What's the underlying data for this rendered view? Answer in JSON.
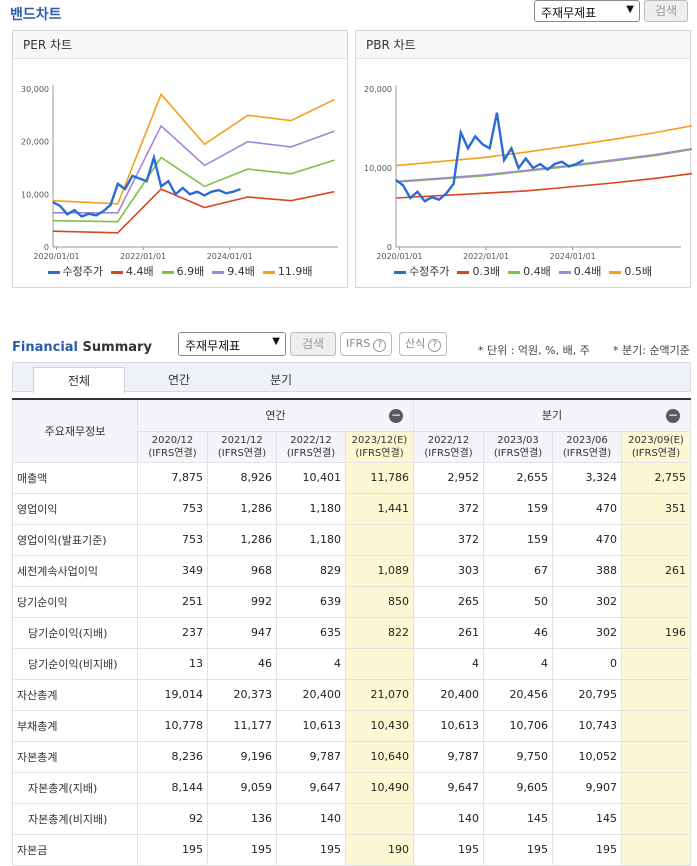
{
  "band": {
    "title": "밴드차트",
    "select_value": "주재무제표",
    "search_label": "검색"
  },
  "per_chart": {
    "title": "PER 차트",
    "chart_data": {
      "type": "line",
      "title": "PER 차트",
      "x_ticks": [
        "2020/01/01",
        "2022/01/01",
        "2024/01/01"
      ],
      "y_ticks": [
        "0",
        "10,000",
        "20,000",
        "30,000"
      ],
      "ylim": [
        0,
        30000
      ],
      "series": [
        {
          "name": "수정주가",
          "color": "#2b6cd4",
          "x": [
            "2019/12",
            "2020/02",
            "2020/04",
            "2020/06",
            "2020/08",
            "2020/10",
            "2020/12",
            "2021/02",
            "2021/04",
            "2021/06",
            "2021/08",
            "2021/10",
            "2021/12",
            "2022/02",
            "2022/04",
            "2022/06",
            "2022/08",
            "2022/10",
            "2022/12",
            "2023/02",
            "2023/04",
            "2023/06",
            "2023/08",
            "2023/10",
            "2023/12",
            "2024/02",
            "2024/04"
          ],
          "values": [
            8500,
            7800,
            6200,
            7000,
            5800,
            6300,
            6000,
            6800,
            8000,
            12000,
            11000,
            13500,
            13000,
            12500,
            17000,
            11500,
            12500,
            10000,
            11200,
            10000,
            10500,
            9800,
            10500,
            10800,
            10200,
            10500,
            11000
          ]
        },
        {
          "name": "4.4배",
          "color": "#d9461e",
          "x": [
            "2019/12",
            "2021/06",
            "2022/06",
            "2023/06",
            "2024/06",
            "2025/06",
            "2026/06"
          ],
          "values": [
            3000,
            2700,
            11000,
            7500,
            9500,
            8800,
            10500
          ]
        },
        {
          "name": "6.9배",
          "color": "#7cc243",
          "x": [
            "2019/12",
            "2021/06",
            "2022/06",
            "2023/06",
            "2024/06",
            "2025/06",
            "2026/06"
          ],
          "values": [
            5000,
            4800,
            17000,
            11500,
            14800,
            13900,
            16500
          ]
        },
        {
          "name": "9.4배",
          "color": "#a486d8",
          "x": [
            "2019/12",
            "2021/06",
            "2022/06",
            "2023/06",
            "2024/06",
            "2025/06",
            "2026/06"
          ],
          "values": [
            6500,
            6500,
            23000,
            15500,
            20000,
            19000,
            22000
          ]
        },
        {
          "name": "11.9배",
          "color": "#f5a01a",
          "x": [
            "2019/12",
            "2021/06",
            "2022/06",
            "2023/06",
            "2024/06",
            "2025/06",
            "2026/06"
          ],
          "values": [
            8800,
            8200,
            29000,
            19500,
            25000,
            24000,
            28000
          ]
        }
      ]
    }
  },
  "pbr_chart": {
    "title": "PBR 차트",
    "chart_data": {
      "type": "line",
      "title": "PBR 차트",
      "x_ticks": [
        "2020/01/01",
        "2022/01/01",
        "2024/01/01"
      ],
      "y_ticks": [
        "0",
        "10,000",
        "20,000"
      ],
      "ylim": [
        0,
        20000
      ],
      "series": [
        {
          "name": "수정주가",
          "color": "#2b6cd4",
          "x": [
            "2019/12",
            "2020/02",
            "2020/04",
            "2020/06",
            "2020/08",
            "2020/10",
            "2020/12",
            "2021/02",
            "2021/04",
            "2021/06",
            "2021/08",
            "2021/10",
            "2021/12",
            "2022/02",
            "2022/04",
            "2022/06",
            "2022/08",
            "2022/10",
            "2022/12",
            "2023/02",
            "2023/04",
            "2023/06",
            "2023/08",
            "2023/10",
            "2023/12",
            "2024/02",
            "2024/04"
          ],
          "values": [
            8500,
            7800,
            6200,
            7000,
            5800,
            6300,
            6000,
            6800,
            8000,
            14500,
            12500,
            14000,
            13000,
            12500,
            17000,
            11000,
            12500,
            10000,
            11200,
            10000,
            10500,
            9800,
            10500,
            10800,
            10200,
            10500,
            11000
          ]
        },
        {
          "name": "0.3배",
          "color": "#d9461e",
          "x": [
            "2019/12",
            "2021/12",
            "2022/12",
            "2023/12",
            "2024/12",
            "2025/12",
            "2026/12"
          ],
          "values": [
            6200,
            6800,
            7100,
            7600,
            8100,
            8700,
            9400
          ]
        },
        {
          "name": "0.4배",
          "color": "#7cc243",
          "x": [
            "2019/12",
            "2021/12",
            "2022/12",
            "2023/12",
            "2024/12",
            "2025/12",
            "2026/12"
          ],
          "values": [
            8200,
            9000,
            9600,
            10200,
            10900,
            11600,
            12500
          ]
        },
        {
          "name": "0.4배",
          "color": "#a486d8",
          "x": [
            "2019/12",
            "2021/12",
            "2022/12",
            "2023/12",
            "2024/12",
            "2025/12",
            "2026/12"
          ],
          "values": [
            8300,
            9100,
            9700,
            10300,
            11000,
            11700,
            12600
          ]
        },
        {
          "name": "0.5배",
          "color": "#f5a01a",
          "x": [
            "2019/12",
            "2021/12",
            "2022/12",
            "2023/12",
            "2024/12",
            "2025/12",
            "2026/12"
          ],
          "values": [
            10300,
            11300,
            12000,
            12800,
            13600,
            14500,
            15500
          ]
        }
      ]
    }
  },
  "fs": {
    "title_a": "Financial",
    "title_b": "Summary",
    "select_value": "주재무제표",
    "search_label": "검색",
    "ifrs_label": "IFRS",
    "formula_label": "산식",
    "unit_note": "* 단위 : 억원, %, 배, 주",
    "quarter_note": "* 분기: 순액기준",
    "tabs": [
      "전체",
      "연간",
      "분기"
    ],
    "group_annual": "연간",
    "group_quarter": "분기",
    "row_header": "주요재무정보",
    "periods": [
      {
        "p": "2020/12",
        "b": "(IFRS연결)"
      },
      {
        "p": "2021/12",
        "b": "(IFRS연결)"
      },
      {
        "p": "2022/12",
        "b": "(IFRS연결)"
      },
      {
        "p": "2023/12(E)",
        "b": "(IFRS연결)"
      },
      {
        "p": "2022/12",
        "b": "(IFRS연결)"
      },
      {
        "p": "2023/03",
        "b": "(IFRS연결)"
      },
      {
        "p": "2023/06",
        "b": "(IFRS연결)"
      },
      {
        "p": "2023/09(E)",
        "b": "(IFRS연결)"
      }
    ],
    "rows": [
      {
        "label": "매출액",
        "v": [
          "7,875",
          "8,926",
          "10,401",
          "11,786",
          "2,952",
          "2,655",
          "3,324",
          "2,755"
        ]
      },
      {
        "label": "영업이익",
        "v": [
          "753",
          "1,286",
          "1,180",
          "1,441",
          "372",
          "159",
          "470",
          "351"
        ]
      },
      {
        "label": "영업이익(발표기준)",
        "v": [
          "753",
          "1,286",
          "1,180",
          "",
          "372",
          "159",
          "470",
          ""
        ]
      },
      {
        "label": "세전계속사업이익",
        "v": [
          "349",
          "968",
          "829",
          "1,089",
          "303",
          "67",
          "388",
          "261"
        ]
      },
      {
        "label": "당기순이익",
        "v": [
          "251",
          "992",
          "639",
          "850",
          "265",
          "50",
          "302",
          ""
        ]
      },
      {
        "label": "당기순이익(지배)",
        "v": [
          "237",
          "947",
          "635",
          "822",
          "261",
          "46",
          "302",
          "196"
        ]
      },
      {
        "label": "당기순이익(비지배)",
        "v": [
          "13",
          "46",
          "4",
          "",
          "4",
          "4",
          "0",
          ""
        ]
      },
      {
        "label": "자산총계",
        "v": [
          "19,014",
          "20,373",
          "20,400",
          "21,070",
          "20,400",
          "20,456",
          "20,795",
          ""
        ]
      },
      {
        "label": "부채총계",
        "v": [
          "10,778",
          "11,177",
          "10,613",
          "10,430",
          "10,613",
          "10,706",
          "10,743",
          ""
        ]
      },
      {
        "label": "자본총계",
        "v": [
          "8,236",
          "9,196",
          "9,787",
          "10,640",
          "9,787",
          "9,750",
          "10,052",
          ""
        ]
      },
      {
        "label": "자본총계(지배)",
        "v": [
          "8,144",
          "9,059",
          "9,647",
          "10,490",
          "9,647",
          "9,605",
          "9,907",
          ""
        ]
      },
      {
        "label": "자본총계(비지배)",
        "v": [
          "92",
          "136",
          "140",
          "",
          "140",
          "145",
          "145",
          ""
        ]
      },
      {
        "label": "자본금",
        "v": [
          "195",
          "195",
          "195",
          "190",
          "195",
          "195",
          "195",
          ""
        ]
      }
    ]
  }
}
